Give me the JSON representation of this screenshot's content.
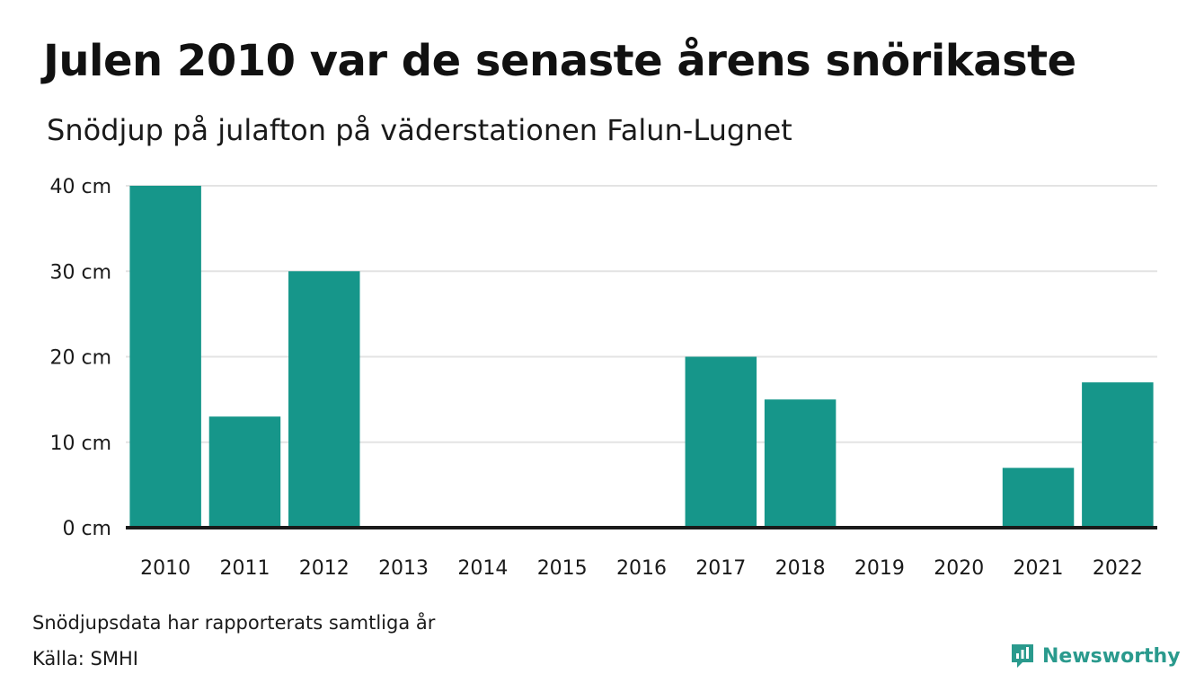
{
  "header": {
    "title": "Julen 2010 var de senaste årens snörikaste",
    "subtitle": "Snödjup på julafton på väderstationen Falun-Lugnet"
  },
  "footer": {
    "note": "Snödjupsdata har rapporterats samtliga år",
    "source": "Källa: SMHI",
    "brand": "Newsworthy",
    "brand_icon": "newsworthy-logo-icon"
  },
  "colors": {
    "bar": "#16968a",
    "grid": "#e3e3e3",
    "baseline": "#1a1a1a",
    "brand": "#2a9a8d"
  },
  "chart_data": {
    "type": "bar",
    "categories": [
      "2010",
      "2011",
      "2012",
      "2013",
      "2014",
      "2015",
      "2016",
      "2017",
      "2018",
      "2019",
      "2020",
      "2021",
      "2022"
    ],
    "values": [
      40,
      13,
      30,
      0,
      0,
      0,
      0,
      20,
      15,
      0,
      0,
      7,
      17
    ],
    "yticks": [
      0,
      10,
      20,
      30,
      40
    ],
    "ytick_labels": [
      "0 cm",
      "10 cm",
      "20 cm",
      "30 cm",
      "40 cm"
    ],
    "ylim": [
      0,
      40
    ],
    "grid": true,
    "legend": "none"
  }
}
